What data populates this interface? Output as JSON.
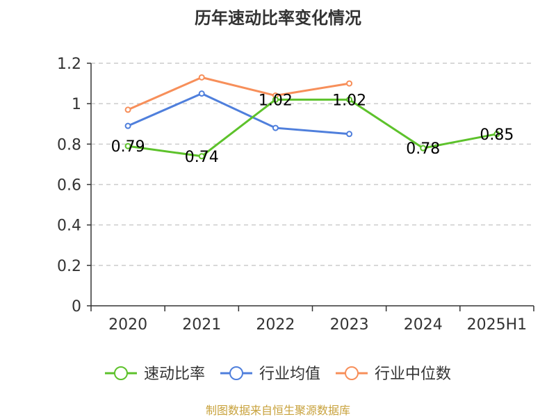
{
  "chart_data": {
    "type": "line",
    "title": "历年速动比率变化情况",
    "categories": [
      "2020",
      "2021",
      "2022",
      "2023",
      "2024",
      "2025H1"
    ],
    "ylim": [
      0,
      1.2
    ],
    "yticks": [
      "0",
      "0.2",
      "0.4",
      "0.6",
      "0.8",
      "1",
      "1.2"
    ],
    "grid": true,
    "legend_position": "bottom",
    "series": [
      {
        "name": "速动比率",
        "color": "#5dc22b",
        "values": [
          0.79,
          0.74,
          1.02,
          1.02,
          0.78,
          0.85
        ],
        "labels": [
          "0.79",
          "0.74",
          "1.02",
          "1.02",
          "0.78",
          "0.85"
        ]
      },
      {
        "name": "行业均值",
        "color": "#4f7fdc",
        "values": [
          0.89,
          1.05,
          0.88,
          0.85,
          null,
          null
        ]
      },
      {
        "name": "行业中位数",
        "color": "#f78f5a",
        "values": [
          0.97,
          1.13,
          1.04,
          1.1,
          null,
          null
        ]
      }
    ],
    "source": "制图数据来自恒生聚源数据库"
  }
}
